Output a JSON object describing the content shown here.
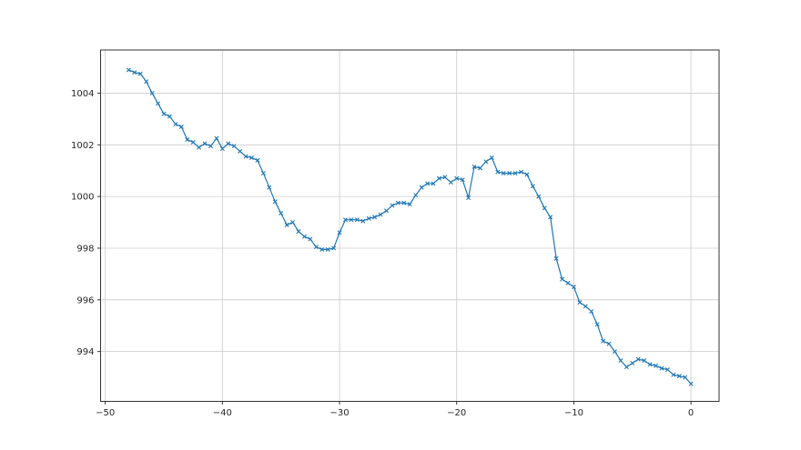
{
  "chart_data": {
    "type": "line",
    "title": "",
    "xlabel": "",
    "ylabel": "",
    "grid": true,
    "legend_position": "none",
    "xlim": [
      -50.4,
      2.4
    ],
    "ylim": [
      992.07,
      1005.67
    ],
    "x_ticks": [
      {
        "value": -50,
        "label": "−50"
      },
      {
        "value": -40,
        "label": "−40"
      },
      {
        "value": -30,
        "label": "−30"
      },
      {
        "value": -20,
        "label": "−20"
      },
      {
        "value": -10,
        "label": "−10"
      },
      {
        "value": 0,
        "label": "0"
      }
    ],
    "y_ticks": [
      {
        "value": 994,
        "label": "994"
      },
      {
        "value": 996,
        "label": "996"
      },
      {
        "value": 998,
        "label": "998"
      },
      {
        "value": 1000,
        "label": "1000"
      },
      {
        "value": 1002,
        "label": "1002"
      },
      {
        "value": 1004,
        "label": "1004"
      }
    ],
    "series": [
      {
        "name": "series-1",
        "color": "#1f77b4",
        "marker": "x",
        "x": [
          -48.0,
          -47.5,
          -47.0,
          -46.5,
          -46.0,
          -45.5,
          -45.0,
          -44.5,
          -44.0,
          -43.5,
          -43.0,
          -42.5,
          -42.0,
          -41.5,
          -41.0,
          -40.5,
          -40.0,
          -39.5,
          -39.0,
          -38.5,
          -38.0,
          -37.5,
          -37.0,
          -36.5,
          -36.0,
          -35.5,
          -35.0,
          -34.5,
          -34.0,
          -33.5,
          -33.0,
          -32.5,
          -32.0,
          -31.5,
          -31.0,
          -30.5,
          -30.0,
          -29.5,
          -29.0,
          -28.5,
          -28.0,
          -27.5,
          -27.0,
          -26.5,
          -26.0,
          -25.5,
          -25.0,
          -24.5,
          -24.0,
          -23.5,
          -23.0,
          -22.5,
          -22.0,
          -21.5,
          -21.0,
          -20.5,
          -20.0,
          -19.5,
          -19.0,
          -18.5,
          -18.0,
          -17.5,
          -17.0,
          -16.5,
          -16.0,
          -15.5,
          -15.0,
          -14.5,
          -14.0,
          -13.5,
          -13.0,
          -12.5,
          -12.0,
          -11.5,
          -11.0,
          -10.5,
          -10.0,
          -9.5,
          -9.0,
          -8.5,
          -8.0,
          -7.5,
          -7.0,
          -6.5,
          -6.0,
          -5.5,
          -5.0,
          -4.5,
          -4.0,
          -3.5,
          -3.0,
          -2.5,
          -2.0,
          -1.5,
          -1.0,
          -0.5,
          0.0
        ],
        "y": [
          1004.9,
          1004.8,
          1004.75,
          1004.45,
          1004.0,
          1003.6,
          1003.2,
          1003.1,
          1002.8,
          1002.7,
          1002.2,
          1002.1,
          1001.9,
          1002.05,
          1001.95,
          1002.25,
          1001.85,
          1002.05,
          1001.95,
          1001.75,
          1001.55,
          1001.5,
          1001.4,
          1000.9,
          1000.35,
          999.8,
          999.35,
          998.9,
          999.0,
          998.65,
          998.45,
          998.35,
          998.05,
          997.95,
          997.95,
          998.0,
          998.6,
          999.1,
          999.1,
          999.1,
          999.05,
          999.15,
          999.2,
          999.3,
          999.45,
          999.65,
          999.75,
          999.75,
          999.7,
          1000.05,
          1000.35,
          1000.5,
          1000.5,
          1000.7,
          1000.75,
          1000.55,
          1000.7,
          1000.65,
          999.95,
          1001.15,
          1001.1,
          1001.35,
          1001.5,
          1000.95,
          1000.9,
          1000.9,
          1000.9,
          1000.95,
          1000.85,
          1000.4,
          1000.0,
          999.55,
          999.2,
          997.6,
          996.8,
          996.65,
          996.5,
          995.9,
          995.75,
          995.55,
          995.05,
          994.4,
          994.3,
          994.0,
          993.65,
          993.4,
          993.55,
          993.7,
          993.65,
          993.5,
          993.45,
          993.35,
          993.3,
          993.1,
          993.05,
          993.0,
          992.75
        ]
      }
    ],
    "style": {
      "background": "#ffffff",
      "grid_color": "#cccccc",
      "spine_color": "#333333",
      "tick_color": "#333333",
      "tick_label_color": "#262626"
    }
  }
}
